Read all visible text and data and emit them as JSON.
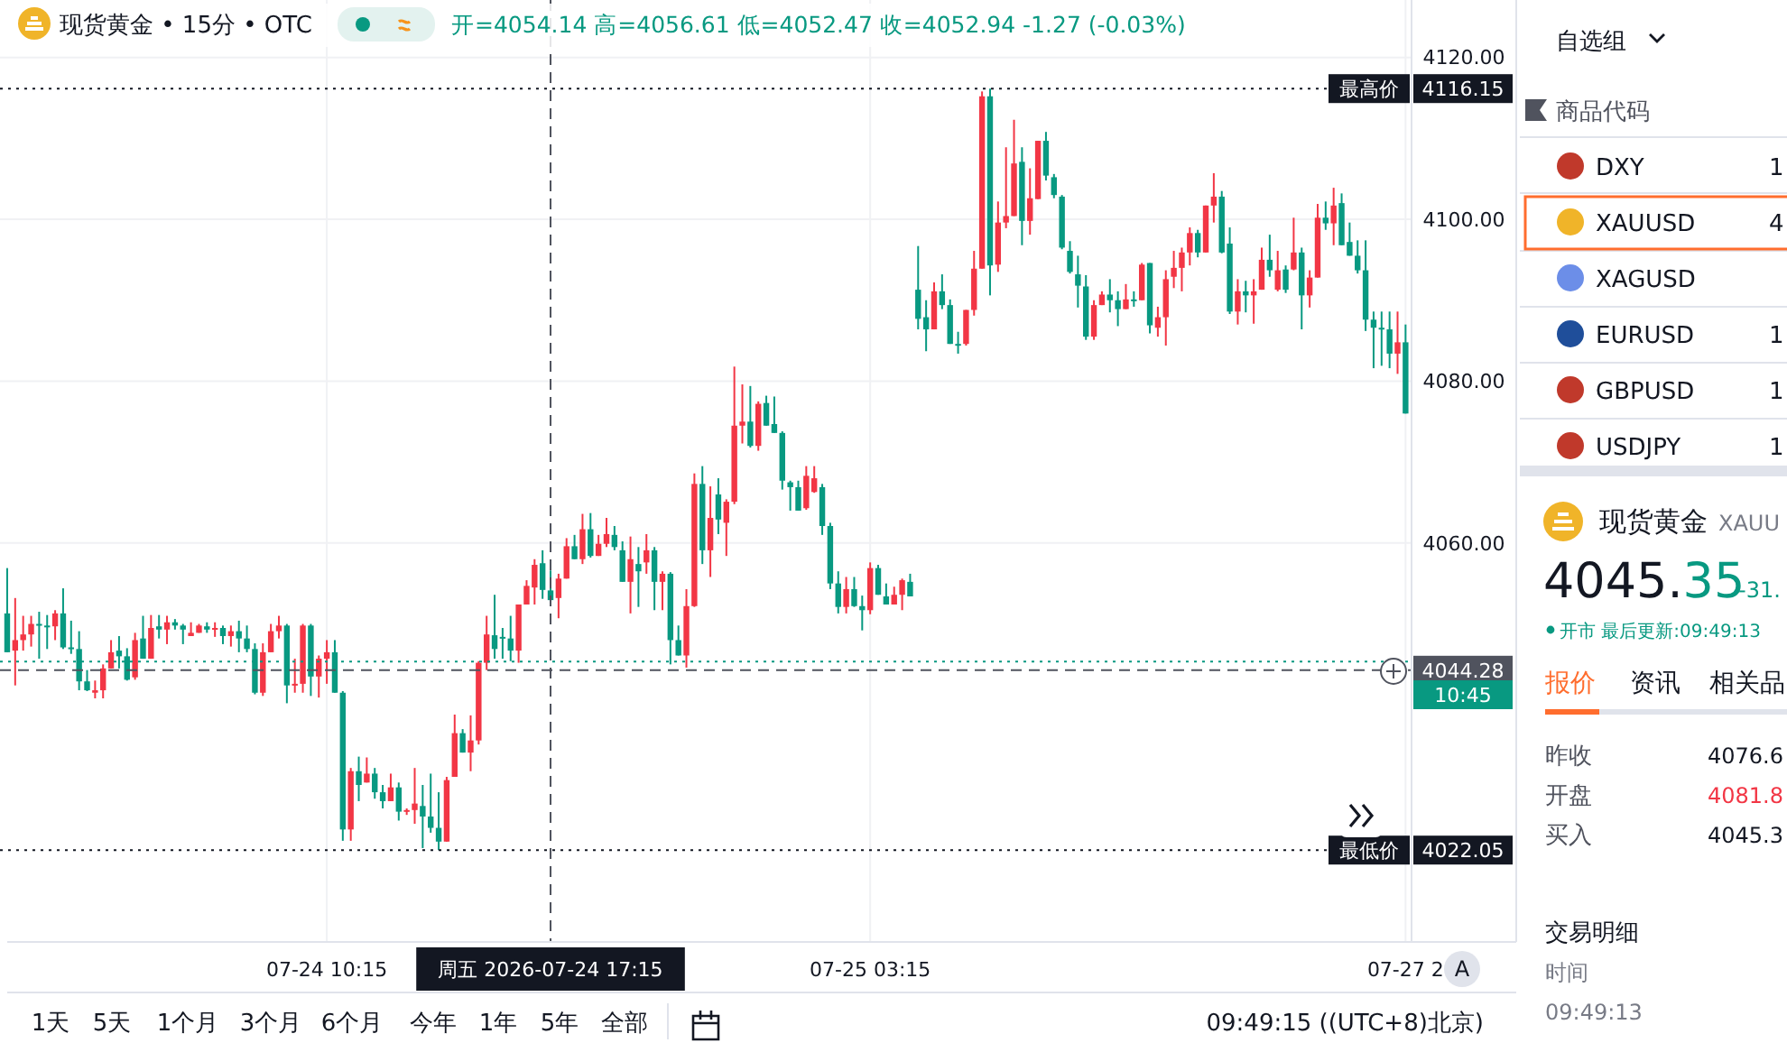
{
  "chart_data": [
    {
      "type": "candlestick",
      "title": "现货黄金 • 15分 • OTC",
      "subtitle": "开=4054.14 高=4056.61 低=4052.47 收=4052.94 -1.27 (-0.03%)",
      "categories": [
        null,
        null,
        null,
        null,
        null,
        null,
        null,
        null,
        null,
        null,
        null,
        null,
        null,
        null,
        null,
        null,
        null,
        null,
        null,
        null,
        null,
        null,
        null,
        null,
        null,
        null,
        null,
        null,
        null,
        null,
        null,
        null,
        null,
        null,
        null,
        null,
        null,
        null,
        null,
        null,
        "07-24 10:15",
        null,
        null,
        null,
        null,
        null,
        null,
        null,
        null,
        null,
        null,
        null,
        null,
        null,
        null,
        null,
        null,
        null,
        null,
        null,
        null,
        null,
        null,
        null,
        null,
        null,
        null,
        null,
        "周五 2026-07-24 17:15",
        null,
        null,
        null,
        null,
        null,
        null,
        null,
        null,
        null,
        null,
        null,
        null,
        null,
        null,
        null,
        null,
        null,
        null,
        null,
        null,
        null,
        null,
        null,
        null,
        null,
        null,
        null,
        null,
        null,
        null,
        null,
        null,
        null,
        null,
        null,
        null,
        null,
        null,
        null,
        "07-25 03:15",
        null,
        null,
        null,
        null,
        null,
        null,
        null,
        null,
        null,
        null,
        null,
        null,
        null,
        null,
        null,
        null,
        null,
        null,
        null,
        null,
        null,
        null,
        null,
        null,
        null,
        null,
        null,
        null,
        null,
        null,
        null,
        null,
        null,
        null,
        null,
        null,
        null,
        null,
        null,
        null,
        null,
        null,
        null,
        null,
        null,
        null,
        null,
        null,
        null,
        null,
        null,
        null,
        null,
        null,
        null,
        null,
        null,
        null,
        null,
        null,
        null,
        null,
        null,
        null,
        null,
        null,
        "07-27 2"
      ],
      "ohlc": [
        [
          4051.3,
          4056.9,
          4046.5,
          4046.5
        ],
        [
          4046.7,
          4053.2,
          4042.4,
          4048.0
        ],
        [
          4048.0,
          4051.0,
          4046.7,
          4048.7
        ],
        [
          4048.7,
          4051.0,
          4047.2,
          4050.0
        ],
        [
          4050.0,
          4051.5,
          4045.7,
          4049.8
        ],
        [
          4049.8,
          4051.1,
          4046.9,
          4049.7
        ],
        [
          4049.7,
          4051.7,
          4048.0,
          4051.3
        ],
        [
          4051.3,
          4054.4,
          4046.9,
          4047.1
        ],
        [
          4047.1,
          4050.4,
          4046.3,
          4046.9
        ],
        [
          4046.9,
          4049.1,
          4041.8,
          4042.9
        ],
        [
          4042.9,
          4044.3,
          4041.7,
          4041.8
        ],
        [
          4041.5,
          4043.0,
          4040.8,
          4041.8
        ],
        [
          4041.8,
          4045.0,
          4040.8,
          4044.5
        ],
        [
          4044.5,
          4048.0,
          4044.5,
          4046.5
        ],
        [
          4046.7,
          4048.5,
          4044.5,
          4046.0
        ],
        [
          4046.0,
          4047.0,
          4043.0,
          4043.1
        ],
        [
          4043.4,
          4048.9,
          4043.1,
          4048.0
        ],
        [
          4048.2,
          4051.0,
          4045.7,
          4045.7
        ],
        [
          4045.7,
          4051.1,
          4045.7,
          4049.5
        ],
        [
          4049.7,
          4051.1,
          4048.2,
          4049.3
        ],
        [
          4049.3,
          4051.0,
          4047.5,
          4050.2
        ],
        [
          4050.2,
          4050.6,
          4049.3,
          4049.8
        ],
        [
          4049.8,
          4050.0,
          4047.5,
          4049.3
        ],
        [
          4048.5,
          4050.2,
          4048.5,
          4048.9
        ],
        [
          4048.9,
          4050.0,
          4048.9,
          4049.8
        ],
        [
          4049.7,
          4050.2,
          4048.9,
          4049.3
        ],
        [
          4049.3,
          4050.2,
          4048.4,
          4049.5
        ],
        [
          4049.5,
          4049.8,
          4047.5,
          4048.5
        ],
        [
          4048.5,
          4049.8,
          4047.2,
          4049.1
        ],
        [
          4049.1,
          4050.4,
          4046.5,
          4048.2
        ],
        [
          4048.2,
          4049.8,
          4046.5,
          4046.9
        ],
        [
          4046.9,
          4047.6,
          4041.3,
          4041.5
        ],
        [
          4041.5,
          4047.6,
          4041.1,
          4046.5
        ],
        [
          4046.5,
          4050.0,
          4046.5,
          4049.1
        ],
        [
          4049.1,
          4051.0,
          4048.2,
          4049.8
        ],
        [
          4049.8,
          4050.0,
          4040.2,
          4042.4
        ],
        [
          4042.4,
          4045.7,
          4041.5,
          4042.6
        ],
        [
          4042.6,
          4050.0,
          4041.5,
          4049.8
        ],
        [
          4049.8,
          4050.0,
          4041.1,
          4043.5
        ],
        [
          4043.5,
          4046.1,
          4040.9,
          4045.7
        ],
        [
          4045.7,
          4048.0,
          4042.6,
          4046.5
        ],
        [
          4046.5,
          4048.0,
          4041.5,
          4041.5
        ],
        [
          4041.5,
          4041.7,
          4023.2,
          4024.6
        ],
        [
          4024.6,
          4032.2,
          4023.2,
          4031.8
        ],
        [
          4031.8,
          4033.6,
          4028.1,
          4030.1
        ],
        [
          4030.4,
          4033.5,
          4030.4,
          4031.5
        ],
        [
          4031.5,
          4032.2,
          4028.4,
          4029.2
        ],
        [
          4029.2,
          4030.1,
          4027.2,
          4028.1
        ],
        [
          4028.1,
          4031.5,
          4028.1,
          4029.8
        ],
        [
          4029.8,
          4030.4,
          4025.7,
          4026.8
        ],
        [
          4026.8,
          4027.2,
          4026.4,
          4027.0
        ],
        [
          4027.0,
          4032.2,
          4025.3,
          4027.8
        ],
        [
          4027.5,
          4030.1,
          4022.3,
          4026.2
        ],
        [
          4026.2,
          4031.5,
          4024.2,
          4024.8
        ],
        [
          4024.8,
          4029.2,
          4022.05,
          4023.1
        ],
        [
          4023.1,
          4031.1,
          4023.1,
          4030.7
        ],
        [
          4031.1,
          4038.8,
          4031.1,
          4036.5
        ],
        [
          4036.5,
          4037.0,
          4034.1,
          4034.1
        ],
        [
          4034.1,
          4038.7,
          4031.8,
          4035.6
        ],
        [
          4035.6,
          4045.4,
          4035.1,
          4045.2
        ],
        [
          4045.2,
          4051.0,
          4044.3,
          4048.7
        ],
        [
          4048.6,
          4053.6,
          4045.7,
          4046.9
        ],
        [
          4048.4,
          4049.5,
          4045.7,
          4048.2
        ],
        [
          4048.2,
          4051.0,
          4045.4,
          4046.7
        ],
        [
          4046.7,
          4052.4,
          4045.2,
          4052.4
        ],
        [
          4052.4,
          4055.4,
          4052.4,
          4054.7
        ],
        [
          4054.5,
          4058.0,
          4052.4,
          4057.3
        ],
        [
          4057.5,
          4059.1,
          4053.1,
          4054.2
        ],
        [
          4054.14,
          4056.61,
          4052.47,
          4052.94
        ],
        [
          4053.2,
          4056.2,
          4050.7,
          4055.6
        ],
        [
          4055.6,
          4060.6,
          4055.6,
          4059.6
        ],
        [
          4059.6,
          4061.0,
          4058.0,
          4058.0
        ],
        [
          4058.0,
          4063.6,
          4057.4,
          4061.7
        ],
        [
          4061.7,
          4063.7,
          4058.2,
          4058.4
        ],
        [
          4058.4,
          4061.0,
          4058.4,
          4059.9
        ],
        [
          4059.9,
          4063.1,
          4059.5,
          4061.1
        ],
        [
          4061.0,
          4062.1,
          4059.1,
          4059.5
        ],
        [
          4059.1,
          4060.2,
          4055.2,
          4055.2
        ],
        [
          4055.2,
          4060.8,
          4051.3,
          4058.0
        ],
        [
          4057.4,
          4059.5,
          4052.1,
          4056.5
        ],
        [
          4057.6,
          4061.1,
          4056.2,
          4059.1
        ],
        [
          4059.1,
          4059.5,
          4051.7,
          4055.2
        ],
        [
          4055.2,
          4056.5,
          4051.7,
          4056.2
        ],
        [
          4056.2,
          4056.4,
          4045.0,
          4048.0
        ],
        [
          4048.0,
          4049.8,
          4046.1,
          4046.1
        ],
        [
          4046.1,
          4054.3,
          4044.6,
          4052.2
        ],
        [
          4052.2,
          4068.6,
          4052.1,
          4067.3
        ],
        [
          4067.3,
          4069.5,
          4057.4,
          4059.1
        ],
        [
          4059.1,
          4067.0,
          4055.8,
          4063.1
        ],
        [
          4066.0,
          4068.0,
          4061.1,
          4062.9
        ],
        [
          4062.5,
          4065.4,
          4058.4,
          4065.1
        ],
        [
          4065.1,
          4081.8,
          4064.8,
          4074.5
        ],
        [
          4074.5,
          4079.6,
          4072.3,
          4075.0
        ],
        [
          4075.0,
          4079.4,
          4071.8,
          4072.0
        ],
        [
          4072.0,
          4077.5,
          4071.4,
          4077.2
        ],
        [
          4077.3,
          4078.2,
          4074.5,
          4074.5
        ],
        [
          4074.7,
          4078.1,
          4073.6,
          4073.6
        ],
        [
          4073.6,
          4073.8,
          4066.6,
          4067.7
        ],
        [
          4067.5,
          4067.7,
          4064.0,
          4066.9
        ],
        [
          4066.9,
          4067.7,
          4064.0,
          4064.0
        ],
        [
          4064.3,
          4069.5,
          4064.1,
          4068.3
        ],
        [
          4066.3,
          4069.5,
          4066.2,
          4068.0
        ],
        [
          4066.9,
          4067.3,
          4061.0,
          4062.1
        ],
        [
          4062.1,
          4062.5,
          4054.3,
          4055.0
        ],
        [
          4055.0,
          4056.5,
          4051.3,
          4052.1
        ],
        [
          4052.1,
          4055.8,
          4051.3,
          4054.3
        ],
        [
          4054.3,
          4055.8,
          4052.1,
          4052.2
        ],
        [
          4052.2,
          4053.5,
          4049.2,
          4051.7
        ],
        [
          4051.7,
          4057.6,
          4051.2,
          4056.9
        ],
        [
          4056.9,
          4057.3,
          4053.6,
          4053.6
        ],
        [
          4053.4,
          4055.0,
          4052.4,
          4052.4
        ],
        [
          4052.4,
          4054.6,
          4052.4,
          4053.6
        ],
        [
          4053.6,
          4055.6,
          4051.7,
          4055.4
        ],
        [
          4055.2,
          4056.2,
          4053.4,
          4053.4
        ],
        [
          4091.3,
          4096.7,
          4086.4,
          4087.7
        ],
        [
          4087.9,
          4090.0,
          4083.7,
          4086.4
        ],
        [
          4086.4,
          4092.2,
          4086.4,
          4091.1
        ],
        [
          4091.1,
          4093.2,
          4088.9,
          4089.4
        ],
        [
          4089.4,
          4090.1,
          4084.6,
          4084.6
        ],
        [
          4084.6,
          4086.1,
          4083.4,
          4084.4
        ],
        [
          4084.6,
          4088.8,
          4084.4,
          4088.8
        ],
        [
          4088.8,
          4096.1,
          4088.1,
          4093.9
        ],
        [
          4093.9,
          4115.8,
          4093.9,
          4115.2
        ],
        [
          4115.2,
          4116.15,
          4090.6,
          4094.3
        ],
        [
          4094.4,
          4102.2,
          4093.5,
          4099.6
        ],
        [
          4099.6,
          4108.9,
          4098.9,
          4100.4
        ],
        [
          4100.4,
          4112.3,
          4100.4,
          4106.9
        ],
        [
          4107.1,
          4108.9,
          4096.8,
          4099.8
        ],
        [
          4099.8,
          4106.3,
          4098.1,
          4102.6
        ],
        [
          4102.5,
          4109.7,
          4102.5,
          4109.7
        ],
        [
          4109.7,
          4110.8,
          4104.8,
          4105.4
        ],
        [
          4105.2,
          4105.6,
          4102.6,
          4103.0
        ],
        [
          4102.8,
          4103.0,
          4096.3,
          4096.5
        ],
        [
          4096.1,
          4097.3,
          4093.3,
          4093.5
        ],
        [
          4093.2,
          4095.5,
          4089.1,
          4091.8
        ],
        [
          4091.7,
          4093.1,
          4085.1,
          4085.5
        ],
        [
          4085.5,
          4090.0,
          4085.1,
          4089.4
        ],
        [
          4089.4,
          4091.1,
          4089.4,
          4090.7
        ],
        [
          4090.7,
          4092.6,
          4088.5,
          4090.0
        ],
        [
          4090.0,
          4091.1,
          4086.8,
          4088.9
        ],
        [
          4088.9,
          4092.0,
          4088.9,
          4090.1
        ],
        [
          4090.1,
          4091.1,
          4089.2,
          4090.0
        ],
        [
          4090.0,
          4094.6,
          4090.0,
          4094.4
        ],
        [
          4094.6,
          4094.6,
          4085.9,
          4086.9
        ],
        [
          4086.6,
          4089.2,
          4085.5,
          4087.9
        ],
        [
          4087.9,
          4093.7,
          4084.4,
          4092.6
        ],
        [
          4092.9,
          4096.1,
          4091.5,
          4094.0
        ],
        [
          4094.0,
          4096.5,
          4091.1,
          4095.9
        ],
        [
          4095.9,
          4099.0,
          4094.3,
          4098.3
        ],
        [
          4098.3,
          4098.7,
          4095.3,
          4095.9
        ],
        [
          4095.9,
          4101.7,
          4095.9,
          4101.7
        ],
        [
          4101.7,
          4105.7,
          4099.6,
          4102.8
        ],
        [
          4102.8,
          4103.5,
          4095.8,
          4095.9
        ],
        [
          4097.0,
          4099.0,
          4088.3,
          4088.6
        ],
        [
          4088.6,
          4092.6,
          4087.0,
          4091.1
        ],
        [
          4091.1,
          4092.4,
          4088.5,
          4090.6
        ],
        [
          4090.6,
          4092.6,
          4087.1,
          4091.1
        ],
        [
          4091.3,
          4096.5,
          4091.3,
          4095.0
        ],
        [
          4095.0,
          4098.1,
          4092.9,
          4093.7
        ],
        [
          4091.3,
          4096.1,
          4091.1,
          4093.7
        ],
        [
          4093.8,
          4094.3,
          4090.9,
          4091.3
        ],
        [
          4093.8,
          4100.2,
          4093.7,
          4095.9
        ],
        [
          4095.9,
          4096.5,
          4086.4,
          4090.6
        ],
        [
          4090.6,
          4093.7,
          4089.1,
          4092.8
        ],
        [
          4092.8,
          4101.9,
          4092.8,
          4100.2
        ],
        [
          4100.2,
          4102.2,
          4098.7,
          4099.5
        ],
        [
          4099.5,
          4103.9,
          4096.8,
          4101.7
        ],
        [
          4102.0,
          4103.2,
          4096.8,
          4096.8
        ],
        [
          4097.2,
          4099.6,
          4095.5,
          4095.5
        ],
        [
          4095.5,
          4097.4,
          4093.3,
          4093.7
        ],
        [
          4093.7,
          4097.4,
          4086.2,
          4087.6
        ],
        [
          4087.6,
          4088.6,
          4081.6,
          4086.6
        ],
        [
          4086.6,
          4088.6,
          4081.9,
          4086.4
        ],
        [
          4086.4,
          4088.6,
          4081.6,
          4083.4
        ],
        [
          4083.4,
          4088.6,
          4080.9,
          4084.8
        ],
        [
          4084.8,
          4087.0,
          4076.0,
          4076.0
        ]
      ],
      "colors": [
        "#089981",
        "#f23645",
        "#f23645",
        "#f23645",
        "#089981",
        "#089981",
        "#f23645",
        "#089981",
        "#089981",
        "#089981",
        "#089981",
        "#f23645",
        "#f23645",
        "#f23645",
        "#089981",
        "#089981",
        "#f23645",
        "#089981",
        "#f23645",
        "#089981",
        "#f23645",
        "#089981",
        "#089981",
        "#f23645",
        "#f23645",
        "#089981",
        "#f23645",
        "#089981",
        "#f23645",
        "#089981",
        "#089981",
        "#089981",
        "#f23645",
        "#f23645",
        "#f23645",
        "#089981",
        "#f23645",
        "#f23645",
        "#089981",
        "#f23645",
        "#f23645",
        "#089981",
        "#089981",
        "#f23645",
        "#089981",
        "#f23645",
        "#089981",
        "#089981",
        "#f23645",
        "#089981",
        "#f23645",
        "#f23645",
        "#089981",
        "#089981",
        "#089981",
        "#f23645",
        "#f23645",
        "#089981",
        "#f23645",
        "#f23645",
        "#f23645",
        "#089981",
        "#089981",
        "#089981",
        "#f23645",
        "#f23645",
        "#f23645",
        "#089981",
        "#089981",
        "#f23645",
        "#f23645",
        "#089981",
        "#f23645",
        "#089981",
        "#f23645",
        "#f23645",
        "#089981",
        "#089981",
        "#f23645",
        "#089981",
        "#f23645",
        "#089981",
        "#f23645",
        "#089981",
        "#089981",
        "#f23645",
        "#f23645",
        "#089981",
        "#f23645",
        "#089981",
        "#f23645",
        "#f23645",
        "#f23645",
        "#089981",
        "#f23645",
        "#089981",
        "#089981",
        "#089981",
        "#089981",
        "#089981",
        "#f23645",
        "#f23645",
        "#089981",
        "#089981",
        "#089981",
        "#f23645",
        "#089981",
        "#089981",
        "#f23645",
        "#089981",
        "#089981",
        "#f23645",
        "#f23645",
        "#089981",
        "#089981",
        "#089981",
        "#f23645",
        "#089981",
        "#089981",
        "#089981",
        "#f23645",
        "#f23645",
        "#f23645",
        "#089981",
        "#f23645",
        "#f23645",
        "#f23645",
        "#089981",
        "#f23645",
        "#f23645",
        "#089981",
        "#089981",
        "#089981",
        "#089981",
        "#089981",
        "#089981",
        "#f23645",
        "#f23645",
        "#089981",
        "#089981",
        "#f23645",
        "#089981",
        "#f23645",
        "#089981",
        "#f23645",
        "#f23645",
        "#f23645",
        "#f23645",
        "#f23645",
        "#089981",
        "#f23645",
        "#f23645",
        "#089981",
        "#089981",
        "#f23645",
        "#089981",
        "#f23645",
        "#f23645",
        "#089981",
        "#f23645",
        "#089981",
        "#f23645",
        "#089981",
        "#f23645",
        "#f23645",
        "#089981",
        "#f23645",
        "#089981",
        "#089981",
        "#089981",
        "#089981",
        "#089981",
        "#089981",
        "#089981",
        "#f23645",
        "#089981"
      ],
      "ylim": [
        4010.7,
        4127.1
      ],
      "yticks": [
        {
          "value": 4060,
          "label": "4060.00"
        },
        {
          "value": 4080,
          "label": "4080.00"
        },
        {
          "value": 4100,
          "label": "4100.00"
        },
        {
          "value": 4120,
          "label": "4120.00"
        }
      ],
      "grid": true,
      "ref_lines": [
        {
          "axis": "y",
          "value": 4116.15,
          "label": "4116.15",
          "color": "#131722",
          "line_style": "dotted"
        },
        {
          "axis": "y",
          "value": 4022.05,
          "label": "4022.05",
          "color": "#131722",
          "line_style": "dotted"
        },
        {
          "axis": "y",
          "value": 4045.35,
          "color": "#089981",
          "line_style": "dotted"
        },
        {
          "axis": "y",
          "value": 4044.28,
          "label": "4044.28",
          "color": "#50535e",
          "line_style": "dashed"
        },
        {
          "axis": "x",
          "value": "周五 2026-07-24 17:15",
          "color": "#50535e",
          "line_style": "dashed"
        }
      ],
      "annotations": [
        "1天",
        "5天",
        "1个月",
        "3个月",
        "6个月",
        "今年",
        "1年",
        "5年",
        "全部",
        "09:49:15 ((UTC+8)北京)",
        "A",
        {
          "text": "最高价",
          "y": 4116.15
        },
        {
          "text": "最低价",
          "y": 4022.05
        },
        "10:45"
      ]
    },
    {
      "type": "other",
      "annotations": [
        "自选组",
        "商品代码",
        "DXY",
        "XAUUSD",
        "XAGUSD",
        "EURUSD",
        "GBPUSD",
        "USDJPY",
        "1",
        "4",
        "1",
        "1",
        "1",
        "现货黄金",
        "XAUU",
        "4045.35",
        "-31.",
        "开市 最后更新:09:49:13",
        "报价",
        "资讯",
        "相关品",
        "昨收",
        "4076.6",
        "开盘",
        "4081.8",
        "买入",
        "4045.3",
        "交易明细",
        "时间",
        "09:49:13"
      ]
    }
  ]
}
